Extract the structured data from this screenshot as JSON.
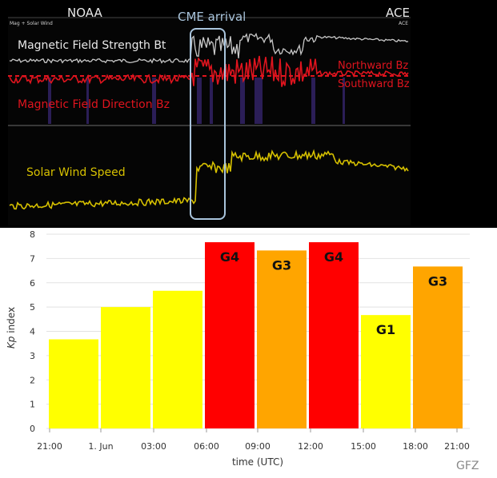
{
  "colors": {
    "field_strength": "#c8c8c8",
    "field_direction": "#e0141e",
    "solar_wind": "#d6c000",
    "g_low": "#ffff00",
    "g3": "#ffa500",
    "g4": "#ff0000",
    "cme_box": "#a9c4dc"
  },
  "solar_panel": {
    "source_left": "NOAA",
    "source_right": "ACE",
    "header_small": "Mag + Solar Wind",
    "cme_label": "CME arrival",
    "field_strength_label": "Magnetic Field Strength  Bt",
    "field_direction_label": "Magnetic Field Direction  Bz",
    "northward_label": "Northward  Bz",
    "southward_label": "Southward  Bz",
    "wind_label": "Solar Wind Speed"
  },
  "chart_data": {
    "type": "bar",
    "ylabel_italic": "Kp",
    "ylabel_rest": " index",
    "xlabel": "time (UTC)",
    "credit": "GFZ",
    "ylim": [
      0,
      8
    ],
    "yticks": [
      "0",
      "1",
      "2",
      "3",
      "4",
      "5",
      "6",
      "7",
      "8"
    ],
    "xticks": [
      "21:00",
      "1. Jun",
      "03:00",
      "06:00",
      "09:00",
      "12:00",
      "15:00",
      "18:00",
      "21:00"
    ],
    "bars": [
      {
        "value": 3.67,
        "level": "low",
        "label": ""
      },
      {
        "value": 5.0,
        "level": "low",
        "label": ""
      },
      {
        "value": 5.67,
        "level": "low",
        "label": ""
      },
      {
        "value": 7.67,
        "level": "g4",
        "label": "G4"
      },
      {
        "value": 7.33,
        "level": "g3",
        "label": "G3"
      },
      {
        "value": 7.67,
        "level": "g4",
        "label": "G4"
      },
      {
        "value": 4.67,
        "level": "low",
        "label": "G1"
      },
      {
        "value": 6.67,
        "level": "g3",
        "label": "G3"
      }
    ]
  }
}
